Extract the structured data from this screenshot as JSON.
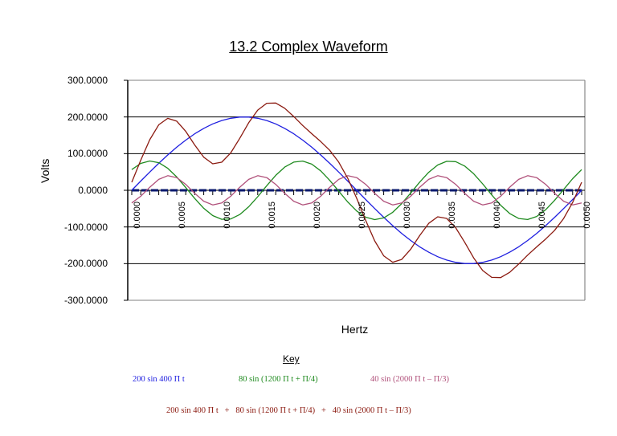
{
  "chart": {
    "title": "13.2 Complex Waveform",
    "ylabel": "Volts",
    "xlabel": "Hertz",
    "key_title": "Key"
  },
  "colors": {
    "series1": "#1f1fe0",
    "series2": "#1e8a1e",
    "series3": "#b0507a",
    "sum": "#8b1a10",
    "zero_line": "#0a1a6e",
    "grid": "#000000"
  },
  "legend": {
    "s1": "200 sin 400 Π t",
    "s2": "80 sin (1200 Π t + Π/4)",
    "s3": "40 sin (2000 Π t – Π/3)",
    "sum": "200 sin 400 Π t   +   80 sin (1200 Π t + Π/4)   +   40 sin (2000 Π t – Π/3)"
  },
  "yticks": [
    "300.0000",
    "200.0000",
    "100.0000",
    "0.0000",
    "-100.0000",
    "-200.0000",
    "-300.0000"
  ],
  "xticks": [
    "0.0000",
    "0.0005",
    "0.0010",
    "0.0015",
    "0.0020",
    "0.0025",
    "0.0030",
    "0.0035",
    "0.0040",
    "0.0045",
    "0.0050"
  ],
  "chart_data": {
    "type": "line",
    "title": "13.2 Complex Waveform",
    "xlabel": "Hertz",
    "ylabel": "Volts",
    "ylim": [
      -300,
      300
    ],
    "xlim": [
      0,
      0.005
    ],
    "x_step": 0.0001,
    "grid": "horizontal major gridlines at every 100",
    "legend_position": "bottom (Key)",
    "x_tick_labels": [
      "0.0000",
      "0.0005",
      "0.0010",
      "0.0015",
      "0.0020",
      "0.0025",
      "0.0030",
      "0.0035",
      "0.0040",
      "0.0045",
      "0.0050"
    ],
    "series": [
      {
        "name": "200 sin 400 Π t",
        "color": "#1f1fe0",
        "values": [
          0,
          25.1,
          49.7,
          73.6,
          96.4,
          117.6,
          136.9,
          154.1,
          168.9,
          181.0,
          190.2,
          196.5,
          199.6,
          199.6,
          196.5,
          190.2,
          181.0,
          168.9,
          154.1,
          136.9,
          117.6,
          96.4,
          73.6,
          49.7,
          25.1,
          0,
          -25.1,
          -49.7,
          -73.6,
          -96.4,
          -117.6,
          -136.9,
          -154.1,
          -168.9,
          -181.0,
          -190.2,
          -196.5,
          -199.6,
          -199.6,
          -196.5,
          -190.2,
          -181.0,
          -168.9,
          -154.1,
          -136.9,
          -117.6,
          -96.4,
          -73.6,
          -49.7,
          -25.1,
          0
        ]
      },
      {
        "name": "80 sin (1200 Π t + Π/4)",
        "color": "#1e8a1e",
        "values": [
          56.6,
          73.4,
          80.0,
          75.3,
          60.0,
          36.3,
          7.5,
          -22.3,
          -49.0,
          -68.9,
          -79.0,
          -78.1,
          -66.2,
          -45.0,
          -17.5,
          12.5,
          40.7,
          63.2,
          76.8,
          79.6,
          71.3,
          52.9,
          27.1,
          -2.5,
          -31.8,
          -56.6,
          -73.4,
          -80.0,
          -75.3,
          -60.0,
          -36.3,
          -7.5,
          22.3,
          49.0,
          68.9,
          79.0,
          78.1,
          66.2,
          45.0,
          17.5,
          -12.5,
          -40.7,
          -63.2,
          -76.8,
          -79.6,
          -71.3,
          -52.9,
          -27.1,
          2.5,
          31.8,
          56.6
        ]
      },
      {
        "name": "40 sin (2000 Π t – Π/3)",
        "color": "#b0507a",
        "values": [
          -34.6,
          -16.3,
          8.3,
          29.7,
          39.8,
          34.6,
          16.3,
          -8.3,
          -29.7,
          -39.8,
          -34.6,
          -16.3,
          8.3,
          29.7,
          39.8,
          34.6,
          16.3,
          -8.3,
          -29.7,
          -39.8,
          -34.6,
          -16.3,
          8.3,
          29.7,
          39.8,
          34.6,
          16.3,
          -8.3,
          -29.7,
          -39.8,
          -34.6,
          -16.3,
          8.3,
          29.7,
          39.8,
          34.6,
          16.3,
          -8.3,
          -29.7,
          -39.8,
          -34.6,
          -16.3,
          8.3,
          29.7,
          39.8,
          34.6,
          16.3,
          -8.3,
          -29.7,
          -39.8,
          -34.6
        ]
      },
      {
        "name": "200 sin 400 Π t + 80 sin (1200 Π t + Π/4) + 40 sin (2000 Π t – Π/3)",
        "color": "#8b1a10",
        "values": [
          22.0,
          82.2,
          138.0,
          178.6,
          196.2,
          188.5,
          160.7,
          123.5,
          90.2,
          72.3,
          76.6,
          102.1,
          141.7,
          184.3,
          218.8,
          237.3,
          238.0,
          223.8,
          201.2,
          176.7,
          154.3,
          133.0,
          109.0,
          76.9,
          33.1,
          -22.0,
          -82.2,
          -138.0,
          -178.6,
          -196.2,
          -188.5,
          -160.7,
          -123.5,
          -90.2,
          -72.3,
          -76.6,
          -102.1,
          -141.7,
          -184.3,
          -218.8,
          -237.3,
          -238.0,
          -223.8,
          -201.2,
          -176.7,
          -154.3,
          -133.0,
          -109.0,
          -76.9,
          -33.1,
          22.0
        ]
      },
      {
        "name": "zero",
        "color": "#0a1a6e",
        "values": [
          0,
          0,
          0,
          0,
          0,
          0,
          0,
          0,
          0,
          0,
          0,
          0,
          0,
          0,
          0,
          0,
          0,
          0,
          0,
          0,
          0,
          0,
          0,
          0,
          0,
          0,
          0,
          0,
          0,
          0,
          0,
          0,
          0,
          0,
          0,
          0,
          0,
          0,
          0,
          0,
          0,
          0,
          0,
          0,
          0,
          0,
          0,
          0,
          0,
          0,
          0
        ]
      }
    ]
  }
}
